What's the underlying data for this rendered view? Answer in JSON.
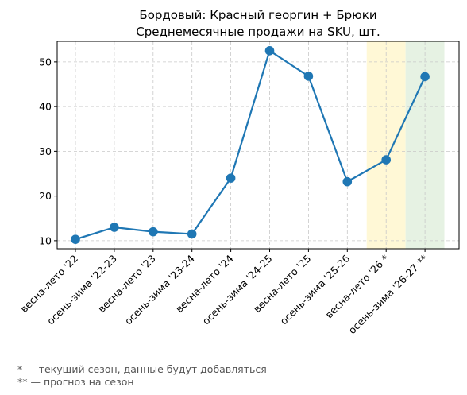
{
  "chart_data": {
    "type": "line",
    "title": [
      "Бордовый: Красный георгин + Брюки",
      "Среднемесячные продажи на SKU, шт."
    ],
    "categories": [
      "весна-лето '22",
      "осень-зима '22-23",
      "весна-лето '23",
      "осень-зима '23-24",
      "весна-лето '24",
      "осень-зима '24-25",
      "весна-лето '25",
      "осень-зима '25-26",
      "весна-лето '26 *",
      "осень-зима '26-27 **"
    ],
    "values": [
      10.3,
      13.0,
      12.0,
      11.5,
      24.0,
      52.5,
      46.8,
      23.2,
      28.1,
      46.7
    ],
    "yticks": [
      10,
      20,
      30,
      40,
      50
    ],
    "ylim": [
      8.2,
      54.6
    ],
    "grid": true,
    "highlight_bands": [
      {
        "category": "весна-лето '26 *",
        "color": "#fff8d6",
        "meaning": "current"
      },
      {
        "category": "осень-зима '26-27 **",
        "color": "#e6f2e3",
        "meaning": "forecast"
      }
    ],
    "line_color": "#1f77b4",
    "notes": [
      "* — текущий сезон, данные будут добавляться",
      "** — прогноз на сезон"
    ]
  }
}
